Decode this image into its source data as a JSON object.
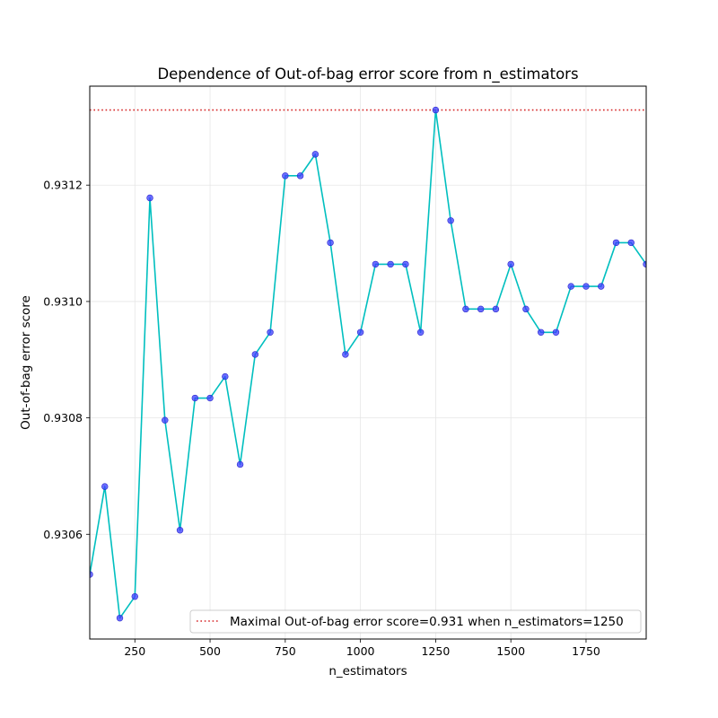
{
  "chart_data": {
    "type": "line",
    "title": "Dependence of Out-of-bag error score from n_estimators",
    "xlabel": "n_estimators",
    "ylabel": "Out-of-bag error score",
    "xlim": [
      100,
      1950
    ],
    "ylim": [
      0.93042,
      0.93137
    ],
    "xticks": [
      250,
      500,
      750,
      1000,
      1250,
      1500,
      1750
    ],
    "yticks": [
      0.9306,
      0.9308,
      0.931,
      0.9312
    ],
    "ytick_labels": [
      "0.9306",
      "0.9308",
      "0.9310",
      "0.9312"
    ],
    "grid": true,
    "legend_placement": "lower right",
    "series": [
      {
        "x": [
          100,
          150,
          200,
          250,
          300,
          350,
          400,
          450,
          500,
          550,
          600,
          650,
          700,
          750,
          800,
          850,
          900,
          950,
          1000,
          1050,
          1100,
          1150,
          1200,
          1250,
          1300,
          1350,
          1400,
          1450,
          1500,
          1550,
          1600,
          1650,
          1700,
          1750,
          1800,
          1850,
          1900,
          1950
        ],
        "y": [
          0.930531,
          0.930682,
          0.930456,
          0.930493,
          0.931178,
          0.930796,
          0.930607,
          0.930834,
          0.930834,
          0.930871,
          0.93072,
          0.930909,
          0.930947,
          0.931216,
          0.931216,
          0.931253,
          0.931101,
          0.930909,
          0.930947,
          0.931064,
          0.931064,
          0.931064,
          0.930947,
          0.931329,
          0.931139,
          0.930987,
          0.930987,
          0.930987,
          0.931064,
          0.930987,
          0.930947,
          0.930947,
          0.931026,
          0.931026,
          0.931026,
          0.931101,
          0.931101,
          0.931064
        ],
        "line_color": "#00bfbf",
        "marker_color": "#3b3bff"
      }
    ],
    "hline": {
      "y": 0.931329,
      "color": "#d62728",
      "style": "dotted",
      "label": "Maximal Out-of-bag error score=0.931 when n_estimators=1250"
    }
  }
}
